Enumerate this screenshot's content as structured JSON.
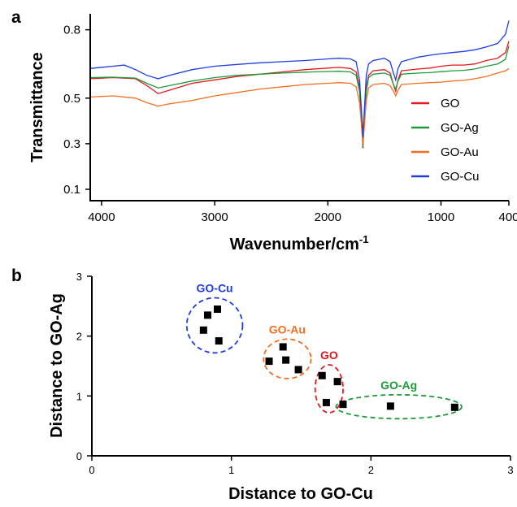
{
  "panel_a_label": "a",
  "panel_b_label": "b",
  "chart_data": [
    {
      "type": "line",
      "xlabel_main": "Wavenumber/cm",
      "xlabel_sup": "-1",
      "ylabel": "Transmittance",
      "xlim": [
        4100,
        400
      ],
      "ylim": [
        0.05,
        0.87
      ],
      "x_ticks": [
        4000,
        3000,
        2000,
        1000,
        400
      ],
      "y_ticks": [
        0.1,
        0.3,
        0.5,
        0.8
      ],
      "x_tick_labels": [
        "4000",
        "3000",
        "2000",
        "1000",
        "400"
      ],
      "y_tick_labels": [
        "0.1",
        "0.3",
        "0.5",
        "0.8"
      ],
      "legend_position": "bottom-right",
      "series": [
        {
          "name": "GO",
          "color": "#e31a1c",
          "points": [
            [
              4100,
              0.585
            ],
            [
              3900,
              0.59
            ],
            [
              3700,
              0.585
            ],
            [
              3600,
              0.555
            ],
            [
              3500,
              0.52
            ],
            [
              3400,
              0.535
            ],
            [
              3200,
              0.565
            ],
            [
              3000,
              0.58
            ],
            [
              2800,
              0.595
            ],
            [
              2600,
              0.605
            ],
            [
              2400,
              0.615
            ],
            [
              2200,
              0.625
            ],
            [
              2000,
              0.632
            ],
            [
              1900,
              0.635
            ],
            [
              1800,
              0.63
            ],
            [
              1750,
              0.615
            ],
            [
              1720,
              0.55
            ],
            [
              1700,
              0.38
            ],
            [
              1690,
              0.28
            ],
            [
              1680,
              0.38
            ],
            [
              1660,
              0.55
            ],
            [
              1640,
              0.6
            ],
            [
              1600,
              0.62
            ],
            [
              1500,
              0.625
            ],
            [
              1450,
              0.61
            ],
            [
              1420,
              0.56
            ],
            [
              1400,
              0.53
            ],
            [
              1380,
              0.58
            ],
            [
              1350,
              0.62
            ],
            [
              1200,
              0.628
            ],
            [
              1100,
              0.632
            ],
            [
              1000,
              0.64
            ],
            [
              900,
              0.645
            ],
            [
              800,
              0.645
            ],
            [
              700,
              0.65
            ],
            [
              600,
              0.665
            ],
            [
              500,
              0.675
            ],
            [
              430,
              0.7
            ],
            [
              400,
              0.75
            ]
          ]
        },
        {
          "name": "GO-Ag",
          "color": "#1f9a3a",
          "points": [
            [
              4100,
              0.59
            ],
            [
              3900,
              0.592
            ],
            [
              3700,
              0.588
            ],
            [
              3600,
              0.565
            ],
            [
              3500,
              0.545
            ],
            [
              3400,
              0.555
            ],
            [
              3200,
              0.575
            ],
            [
              3000,
              0.59
            ],
            [
              2800,
              0.6
            ],
            [
              2600,
              0.605
            ],
            [
              2400,
              0.61
            ],
            [
              2200,
              0.614
            ],
            [
              2000,
              0.617
            ],
            [
              1900,
              0.618
            ],
            [
              1800,
              0.615
            ],
            [
              1750,
              0.6
            ],
            [
              1720,
              0.53
            ],
            [
              1700,
              0.37
            ],
            [
              1690,
              0.29
            ],
            [
              1680,
              0.37
            ],
            [
              1660,
              0.53
            ],
            [
              1640,
              0.59
            ],
            [
              1600,
              0.605
            ],
            [
              1500,
              0.61
            ],
            [
              1450,
              0.6
            ],
            [
              1420,
              0.56
            ],
            [
              1400,
              0.54
            ],
            [
              1380,
              0.575
            ],
            [
              1350,
              0.605
            ],
            [
              1200,
              0.61
            ],
            [
              1100,
              0.612
            ],
            [
              1000,
              0.616
            ],
            [
              900,
              0.62
            ],
            [
              800,
              0.622
            ],
            [
              700,
              0.628
            ],
            [
              600,
              0.64
            ],
            [
              500,
              0.65
            ],
            [
              430,
              0.67
            ],
            [
              400,
              0.73
            ]
          ]
        },
        {
          "name": "GO-Au",
          "color": "#f36f21",
          "points": [
            [
              4100,
              0.505
            ],
            [
              3900,
              0.51
            ],
            [
              3700,
              0.5
            ],
            [
              3600,
              0.48
            ],
            [
              3500,
              0.465
            ],
            [
              3400,
              0.475
            ],
            [
              3200,
              0.49
            ],
            [
              3000,
              0.51
            ],
            [
              2800,
              0.525
            ],
            [
              2600,
              0.54
            ],
            [
              2400,
              0.55
            ],
            [
              2200,
              0.56
            ],
            [
              2000,
              0.565
            ],
            [
              1900,
              0.568
            ],
            [
              1800,
              0.565
            ],
            [
              1750,
              0.55
            ],
            [
              1720,
              0.48
            ],
            [
              1700,
              0.36
            ],
            [
              1690,
              0.3
            ],
            [
              1680,
              0.36
            ],
            [
              1660,
              0.49
            ],
            [
              1640,
              0.545
            ],
            [
              1600,
              0.56
            ],
            [
              1500,
              0.565
            ],
            [
              1450,
              0.555
            ],
            [
              1420,
              0.53
            ],
            [
              1400,
              0.51
            ],
            [
              1380,
              0.535
            ],
            [
              1350,
              0.56
            ],
            [
              1200,
              0.565
            ],
            [
              1100,
              0.568
            ],
            [
              1000,
              0.57
            ],
            [
              900,
              0.575
            ],
            [
              800,
              0.578
            ],
            [
              700,
              0.585
            ],
            [
              600,
              0.595
            ],
            [
              500,
              0.61
            ],
            [
              430,
              0.62
            ],
            [
              400,
              0.63
            ]
          ]
        },
        {
          "name": "GO-Cu",
          "color": "#1f3de0",
          "points": [
            [
              4100,
              0.63
            ],
            [
              3900,
              0.64
            ],
            [
              3800,
              0.645
            ],
            [
              3700,
              0.625
            ],
            [
              3600,
              0.6
            ],
            [
              3500,
              0.585
            ],
            [
              3400,
              0.6
            ],
            [
              3200,
              0.625
            ],
            [
              3000,
              0.64
            ],
            [
              2800,
              0.648
            ],
            [
              2600,
              0.655
            ],
            [
              2400,
              0.66
            ],
            [
              2200,
              0.665
            ],
            [
              2000,
              0.672
            ],
            [
              1900,
              0.675
            ],
            [
              1800,
              0.672
            ],
            [
              1750,
              0.66
            ],
            [
              1720,
              0.58
            ],
            [
              1700,
              0.42
            ],
            [
              1690,
              0.33
            ],
            [
              1680,
              0.42
            ],
            [
              1660,
              0.6
            ],
            [
              1640,
              0.65
            ],
            [
              1600,
              0.665
            ],
            [
              1500,
              0.675
            ],
            [
              1450,
              0.66
            ],
            [
              1420,
              0.61
            ],
            [
              1400,
              0.58
            ],
            [
              1380,
              0.63
            ],
            [
              1350,
              0.66
            ],
            [
              1200,
              0.68
            ],
            [
              1100,
              0.688
            ],
            [
              1000,
              0.695
            ],
            [
              900,
              0.7
            ],
            [
              800,
              0.705
            ],
            [
              700,
              0.712
            ],
            [
              600,
              0.725
            ],
            [
              500,
              0.74
            ],
            [
              430,
              0.78
            ],
            [
              400,
              0.84
            ]
          ]
        }
      ]
    },
    {
      "type": "scatter",
      "xlabel": "Distance to GO-Cu",
      "ylabel": "Distance to GO-Ag",
      "xlim": [
        0,
        3
      ],
      "ylim": [
        0,
        3
      ],
      "x_ticks": [
        0,
        1,
        2,
        3
      ],
      "y_ticks": [
        0,
        1,
        2,
        3
      ],
      "x_tick_labels": [
        "0",
        "1",
        "2",
        "3"
      ],
      "y_tick_labels": [
        "0",
        "1",
        "2",
        "3"
      ],
      "marker_color": "#000000",
      "points": [
        [
          0.8,
          2.1
        ],
        [
          0.83,
          2.35
        ],
        [
          0.9,
          2.45
        ],
        [
          0.91,
          1.92
        ],
        [
          1.27,
          1.58
        ],
        [
          1.37,
          1.82
        ],
        [
          1.39,
          1.6
        ],
        [
          1.48,
          1.44
        ],
        [
          1.65,
          1.34
        ],
        [
          1.68,
          0.89
        ],
        [
          1.76,
          1.24
        ],
        [
          1.8,
          0.86
        ],
        [
          2.14,
          0.83
        ],
        [
          2.6,
          0.81
        ]
      ],
      "clusters": [
        {
          "label": "GO-Cu",
          "color": "#1f3de0",
          "cx": 0.88,
          "cy": 2.18,
          "rx": 0.2,
          "ry": 0.46
        },
        {
          "label": "GO-Au",
          "color": "#f36f21",
          "cx": 1.4,
          "cy": 1.62,
          "rx": 0.17,
          "ry": 0.33
        },
        {
          "label": "GO",
          "color": "#e31a1c",
          "cx": 1.7,
          "cy": 1.12,
          "rx": 0.1,
          "ry": 0.4
        },
        {
          "label": "GO-Ag",
          "color": "#1f9a3a",
          "cx": 2.2,
          "cy": 0.82,
          "rx": 0.45,
          "ry": 0.2
        }
      ]
    }
  ]
}
